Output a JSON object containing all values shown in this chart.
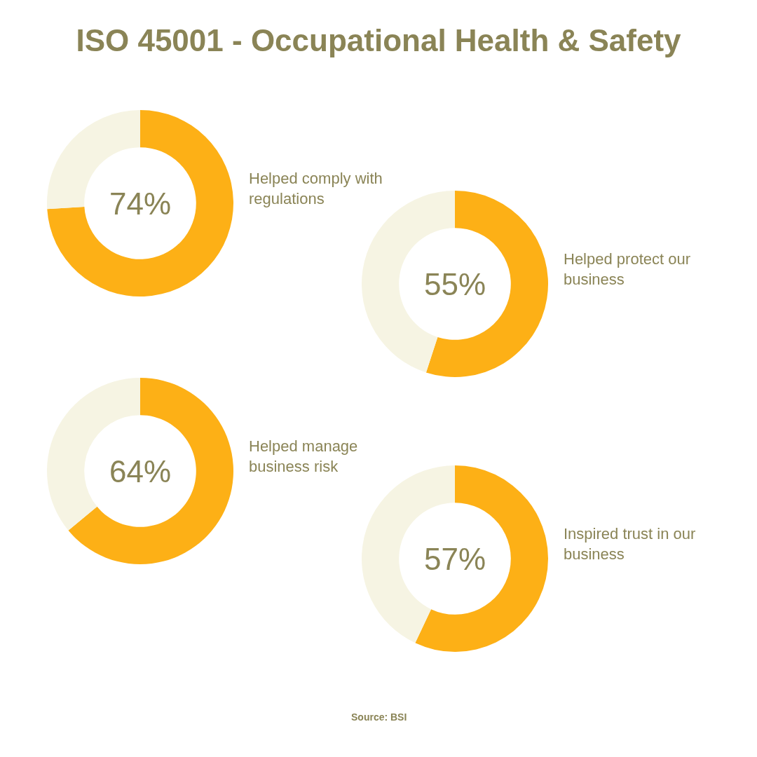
{
  "chart_data": [
    {
      "type": "donut",
      "title": "ISO 45001 - Occupational Health & Safety",
      "categories": [
        "Helped comply with regulations",
        null
      ],
      "values": [
        74,
        26
      ],
      "colors": [
        "#fdb016",
        "#f6f4e3"
      ],
      "value_labels": [
        "74%",
        null
      ]
    },
    {
      "type": "donut",
      "categories": [
        "Helped protect our business",
        null
      ],
      "values": [
        55,
        45
      ],
      "colors": [
        "#fdb016",
        "#f6f4e3"
      ],
      "value_labels": [
        "55%",
        null
      ]
    },
    {
      "type": "donut",
      "categories": [
        "Helped manage business risk",
        null
      ],
      "values": [
        64,
        36
      ],
      "colors": [
        "#fdb016",
        "#f6f4e3"
      ],
      "value_labels": [
        "64%",
        null
      ]
    },
    {
      "type": "donut",
      "categories": [
        "Inspired trust in our business",
        null
      ],
      "values": [
        57,
        43
      ],
      "colors": [
        "#fdb016",
        "#f6f4e3"
      ],
      "value_labels": [
        "57%",
        null
      ],
      "annotations": [
        "Source: BSI"
      ]
    }
  ]
}
